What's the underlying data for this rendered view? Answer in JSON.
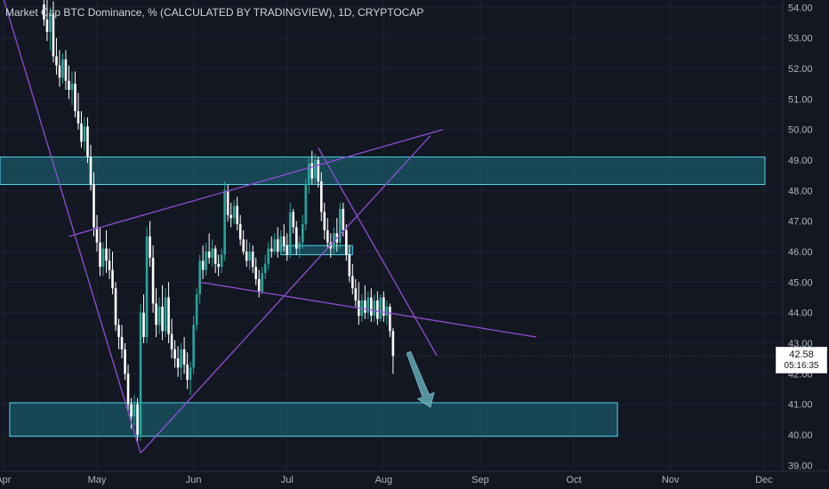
{
  "title": "Market Cap BTC Dominance, % (CALCULATED BY TRADINGVIEW), 1D, CRYPTOCAP",
  "last_price_label": "42.58",
  "countdown_label": "05:16:35",
  "colors": {
    "background": "#131722",
    "up_candle": "#26a69a",
    "down_candle": "#ffffff",
    "trendline": "#8e4fd4",
    "zone_fill": "#1b6f80",
    "zone_border": "#4fd6e8",
    "arrow": "#5fa8b4"
  },
  "chart_data": {
    "type": "candlestick",
    "title": "Market Cap BTC Dominance, % (CALCULATED BY TRADINGVIEW), 1D, CRYPTOCAP",
    "xlabel": "",
    "ylabel": "",
    "x_tick_labels": [
      "Apr",
      "May",
      "Jun",
      "Jul",
      "Aug",
      "Sep",
      "Oct",
      "Nov",
      "Dec"
    ],
    "x_tick_days": [
      -15,
      15,
      46,
      76,
      107,
      138,
      168,
      199,
      229
    ],
    "y_tick_labels": [
      "39.00",
      "40.00",
      "41.00",
      "42.00",
      "43.00",
      "44.00",
      "45.00",
      "46.00",
      "47.00",
      "48.00",
      "49.00",
      "50.00",
      "51.00",
      "52.00",
      "53.00",
      "54.00"
    ],
    "ylim": [
      39.0,
      54.3
    ],
    "y_scale": "linear",
    "grid": true,
    "series": [
      {
        "comment_days": "x = day index where 1 May = 15",
        "ohlc": [
          [
            -2,
            54.1,
            54.5,
            53.4,
            53.6
          ],
          [
            -1,
            53.6,
            54.3,
            52.9,
            53.2
          ],
          [
            0,
            53.2,
            54.0,
            52.6,
            53.8
          ],
          [
            1,
            53.8,
            54.2,
            52.2,
            52.4
          ],
          [
            2,
            52.4,
            53.0,
            51.8,
            52.1
          ],
          [
            3,
            52.1,
            52.6,
            51.4,
            51.7
          ],
          [
            4,
            51.7,
            52.5,
            51.5,
            52.3
          ],
          [
            5,
            52.3,
            52.6,
            51.3,
            51.6
          ],
          [
            6,
            51.6,
            52.1,
            51.0,
            51.3
          ],
          [
            7,
            51.3,
            51.9,
            50.8,
            51.5
          ],
          [
            8,
            51.5,
            51.9,
            50.4,
            50.6
          ],
          [
            9,
            50.6,
            51.2,
            50.0,
            50.2
          ],
          [
            10,
            50.2,
            50.6,
            49.4,
            49.6
          ],
          [
            11,
            49.6,
            50.4,
            49.3,
            50.1
          ],
          [
            12,
            50.1,
            50.4,
            48.9,
            49.1
          ],
          [
            13,
            49.1,
            49.5,
            48.0,
            48.2
          ],
          [
            14,
            48.2,
            48.6,
            46.5,
            46.8
          ],
          [
            15,
            46.8,
            47.2,
            46.0,
            46.3
          ],
          [
            16,
            46.3,
            46.8,
            45.2,
            45.5
          ],
          [
            17,
            45.5,
            46.3,
            45.2,
            46.1
          ],
          [
            18,
            46.1,
            46.7,
            45.3,
            45.7
          ],
          [
            19,
            45.7,
            46.1,
            45.1,
            45.4
          ],
          [
            20,
            45.4,
            46.0,
            44.6,
            44.8
          ],
          [
            21,
            44.8,
            45.0,
            43.4,
            43.6
          ],
          [
            22,
            43.6,
            43.8,
            42.8,
            43.2
          ],
          [
            23,
            43.2,
            43.6,
            42.5,
            42.8
          ],
          [
            24,
            42.8,
            43.0,
            41.8,
            42.0
          ],
          [
            25,
            42.0,
            42.3,
            40.8,
            41.0
          ],
          [
            26,
            41.0,
            41.2,
            40.2,
            40.6
          ],
          [
            27,
            40.6,
            41.3,
            40.3,
            41.0
          ],
          [
            28,
            41.0,
            41.2,
            39.7,
            40.0
          ],
          [
            29,
            40.0,
            44.3,
            39.8,
            44.0
          ],
          [
            30,
            44.0,
            44.6,
            43.0,
            43.2
          ],
          [
            31,
            43.2,
            46.8,
            43.0,
            46.5
          ],
          [
            32,
            46.5,
            47.0,
            45.5,
            45.8
          ],
          [
            33,
            45.8,
            46.2,
            44.0,
            44.3
          ],
          [
            34,
            44.3,
            44.8,
            43.2,
            43.6
          ],
          [
            35,
            43.6,
            44.5,
            43.3,
            44.2
          ],
          [
            36,
            44.2,
            44.9,
            43.1,
            43.4
          ],
          [
            37,
            43.4,
            44.8,
            43.2,
            44.5
          ],
          [
            38,
            44.5,
            45.0,
            43.0,
            43.3
          ],
          [
            39,
            43.3,
            43.8,
            42.5,
            42.8
          ],
          [
            40,
            42.8,
            43.1,
            42.2,
            42.5
          ],
          [
            41,
            42.5,
            42.9,
            41.9,
            42.2
          ],
          [
            42,
            42.2,
            43.0,
            41.8,
            42.8
          ],
          [
            43,
            42.8,
            43.2,
            42.0,
            42.3
          ],
          [
            44,
            42.3,
            42.7,
            41.5,
            41.8
          ],
          [
            45,
            41.8,
            42.4,
            41.3,
            42.2
          ],
          [
            46,
            42.2,
            43.9,
            42.0,
            43.6
          ],
          [
            47,
            43.6,
            44.8,
            43.4,
            44.6
          ],
          [
            48,
            44.6,
            45.9,
            44.3,
            45.7
          ],
          [
            49,
            45.7,
            46.2,
            45.1,
            45.4
          ],
          [
            50,
            45.4,
            46.3,
            45.2,
            46.0
          ],
          [
            51,
            46.0,
            46.6,
            45.6,
            45.8
          ],
          [
            52,
            45.8,
            46.4,
            45.5,
            46.1
          ],
          [
            53,
            46.1,
            46.2,
            45.3,
            45.6
          ],
          [
            54,
            45.6,
            45.9,
            45.2,
            45.5
          ],
          [
            55,
            45.5,
            46.1,
            45.3,
            45.9
          ],
          [
            56,
            45.9,
            48.3,
            45.7,
            48.0
          ],
          [
            57,
            48.0,
            48.2,
            47.0,
            47.2
          ],
          [
            58,
            47.2,
            47.6,
            46.8,
            47.1
          ],
          [
            59,
            47.1,
            47.7,
            46.9,
            47.5
          ],
          [
            60,
            47.5,
            47.8,
            46.7,
            46.9
          ],
          [
            61,
            46.9,
            47.2,
            46.2,
            46.4
          ],
          [
            62,
            46.4,
            46.7,
            45.9,
            46.0
          ],
          [
            63,
            46.0,
            46.4,
            45.5,
            45.7
          ],
          [
            64,
            45.7,
            46.3,
            45.4,
            46.0
          ],
          [
            65,
            46.0,
            46.2,
            45.3,
            45.5
          ],
          [
            66,
            45.5,
            45.8,
            44.9,
            45.1
          ],
          [
            67,
            45.1,
            45.4,
            44.5,
            44.7
          ],
          [
            68,
            44.7,
            45.5,
            44.6,
            45.3
          ],
          [
            69,
            45.3,
            45.9,
            45.1,
            45.6
          ],
          [
            70,
            45.6,
            46.3,
            45.4,
            46.1
          ],
          [
            71,
            46.1,
            46.5,
            45.8,
            46.0
          ],
          [
            72,
            46.0,
            46.6,
            45.9,
            46.4
          ],
          [
            73,
            46.4,
            46.8,
            45.8,
            46.0
          ],
          [
            74,
            46.0,
            46.7,
            45.9,
            46.5
          ],
          [
            75,
            46.5,
            46.9,
            46.0,
            46.2
          ],
          [
            76,
            46.2,
            46.6,
            45.7,
            45.9
          ],
          [
            77,
            45.9,
            47.6,
            45.8,
            47.3
          ],
          [
            78,
            47.3,
            47.4,
            46.6,
            46.8
          ],
          [
            79,
            46.8,
            47.0,
            45.9,
            46.1
          ],
          [
            80,
            46.1,
            46.5,
            45.8,
            46.3
          ],
          [
            81,
            46.3,
            47.2,
            46.1,
            46.9
          ],
          [
            82,
            46.9,
            48.4,
            46.7,
            48.2
          ],
          [
            83,
            48.2,
            49.1,
            47.9,
            48.9
          ],
          [
            84,
            48.9,
            49.3,
            48.2,
            48.4
          ],
          [
            85,
            48.4,
            49.2,
            48.2,
            49.0
          ],
          [
            86,
            49.0,
            49.1,
            48.1,
            48.3
          ],
          [
            87,
            48.3,
            48.6,
            47.0,
            47.3
          ],
          [
            88,
            47.3,
            47.6,
            46.4,
            46.7
          ],
          [
            89,
            46.7,
            47.1,
            46.1,
            46.3
          ],
          [
            90,
            46.3,
            46.6,
            45.8,
            46.1
          ],
          [
            91,
            46.1,
            46.8,
            45.9,
            46.6
          ],
          [
            92,
            46.6,
            47.1,
            46.0,
            46.3
          ],
          [
            93,
            46.3,
            47.6,
            46.1,
            47.4
          ],
          [
            94,
            47.4,
            47.6,
            46.5,
            46.7
          ],
          [
            95,
            46.7,
            46.9,
            45.7,
            45.9
          ],
          [
            96,
            45.9,
            46.2,
            45.0,
            45.2
          ],
          [
            97,
            45.2,
            45.6,
            44.6,
            44.8
          ],
          [
            98,
            44.8,
            45.1,
            44.2,
            44.4
          ],
          [
            99,
            44.4,
            45.0,
            43.6,
            43.9
          ],
          [
            100,
            43.9,
            44.6,
            43.7,
            44.4
          ],
          [
            101,
            44.4,
            44.9,
            43.8,
            44.0
          ],
          [
            102,
            44.0,
            44.7,
            43.8,
            44.5
          ],
          [
            103,
            44.5,
            44.8,
            43.7,
            43.9
          ],
          [
            104,
            43.9,
            44.6,
            43.7,
            44.4
          ],
          [
            105,
            44.4,
            44.7,
            43.6,
            43.8
          ],
          [
            106,
            43.8,
            44.6,
            43.7,
            44.5
          ],
          [
            107,
            44.5,
            44.7,
            43.7,
            43.9
          ],
          [
            108,
            43.9,
            44.4,
            43.6,
            44.2
          ],
          [
            109,
            44.2,
            44.3,
            43.2,
            43.4
          ],
          [
            110,
            43.4,
            43.5,
            42.0,
            42.58
          ]
        ]
      }
    ],
    "drawings": {
      "support_zone": {
        "y_range": [
          39.95,
          41.05
        ],
        "x_range": [
          -13,
          182
        ]
      },
      "resistance_zone": {
        "y_range": [
          48.2,
          49.1
        ],
        "x_range": [
          -18,
          230
        ]
      },
      "mini_zone": {
        "y_range": [
          45.9,
          46.2
        ],
        "x_range": [
          74,
          97
        ]
      },
      "trendlines": [
        {
          "from": [
            -15,
            54.3
          ],
          "to": [
            29,
            39.4
          ]
        },
        {
          "from": [
            29,
            39.4
          ],
          "to": [
            122,
            49.8
          ]
        },
        {
          "from": [
            6,
            46.5
          ],
          "to": [
            126,
            50.0
          ]
        },
        {
          "from": [
            48,
            45.0
          ],
          "to": [
            156,
            43.2
          ]
        },
        {
          "from": [
            86,
            49.4
          ],
          "to": [
            124,
            42.6
          ]
        }
      ],
      "projection_arrow": {
        "from": [
          115,
          42.7
        ],
        "to": [
          122,
          40.9
        ]
      }
    }
  }
}
